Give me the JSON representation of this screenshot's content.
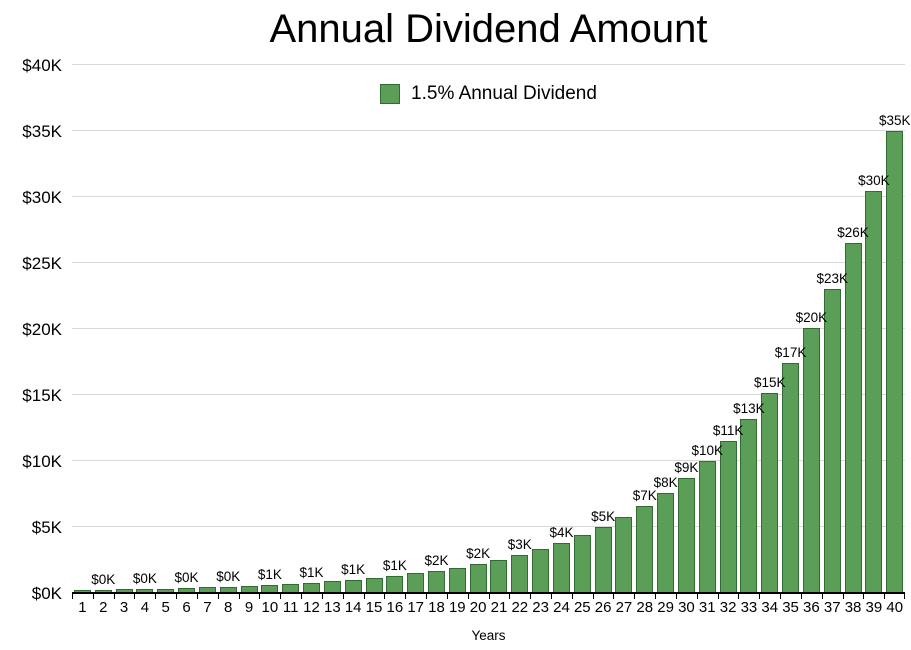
{
  "chart_data": {
    "type": "bar",
    "title": "Annual Dividend Amount",
    "legend": "1.5% Annual Dividend",
    "legend_position": "top",
    "xlabel": "Years",
    "ylabel": "",
    "grid": true,
    "ylim": [
      0,
      40000
    ],
    "y_ticks": [
      "$0K",
      "$5K",
      "$10K",
      "$15K",
      "$20K",
      "$25K",
      "$30K",
      "$35K",
      "$40K"
    ],
    "x": [
      1,
      2,
      3,
      4,
      5,
      6,
      7,
      8,
      9,
      10,
      11,
      12,
      13,
      14,
      15,
      16,
      17,
      18,
      19,
      20,
      21,
      22,
      23,
      24,
      25,
      26,
      27,
      28,
      29,
      30,
      31,
      32,
      33,
      34,
      35,
      36,
      37,
      38,
      39,
      40
    ],
    "values": [
      150,
      173,
      198,
      228,
      262,
      302,
      347,
      399,
      459,
      528,
      607,
      698,
      803,
      923,
      1061,
      1221,
      1404,
      1614,
      1856,
      2135,
      2455,
      2823,
      3247,
      3734,
      4294,
      4938,
      5679,
      6531,
      7511,
      8637,
      9932,
      11422,
      13136,
      15106,
      17372,
      19978,
      22975,
      26421,
      30384,
      34942
    ],
    "bar_labels": [
      null,
      "$0K",
      null,
      "$0K",
      null,
      "$0K",
      null,
      "$0K",
      null,
      "$1K",
      null,
      "$1K",
      null,
      "$1K",
      null,
      "$1K",
      null,
      "$2K",
      null,
      "$2K",
      null,
      "$3K",
      null,
      "$4K",
      null,
      "$5K",
      null,
      "$7K",
      "$8K",
      "$9K",
      "$10K",
      "$11K",
      "$13K",
      "$15K",
      "$17K",
      "$20K",
      "$23K",
      "$26K",
      "$30K",
      "$35K"
    ],
    "colors": {
      "bar_fill": "#5a9e58",
      "bar_border": "#316b33",
      "gridline": "#d9d9d9",
      "axis": "#000000",
      "text": "#000000"
    }
  }
}
